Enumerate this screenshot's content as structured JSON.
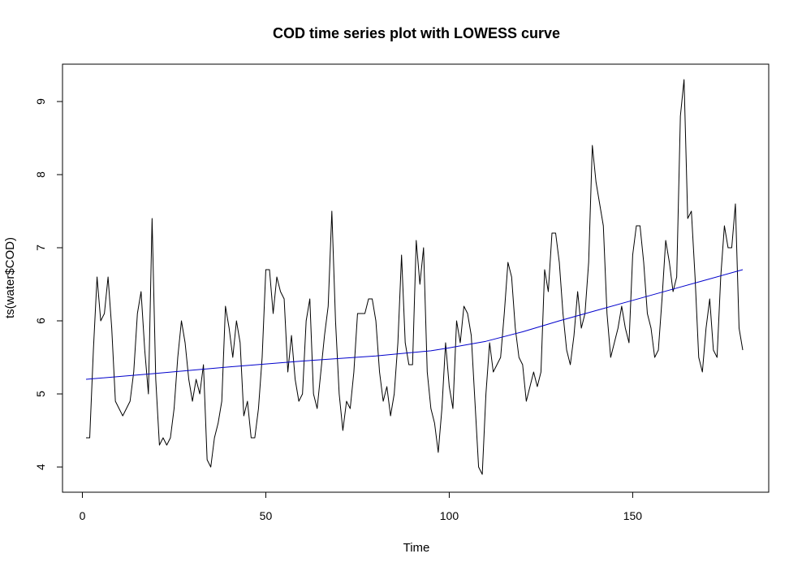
{
  "chart_data": {
    "type": "line",
    "title": "COD time series plot with LOWESS curve",
    "xlabel": "Time",
    "ylabel": "ts(water$COD)",
    "xlim": [
      1,
      180
    ],
    "ylim": [
      3.9,
      9.3
    ],
    "x_ticks": [
      0,
      50,
      100,
      150
    ],
    "y_ticks": [
      4,
      5,
      6,
      7,
      8,
      9
    ],
    "x_tick_labels": [
      "0",
      "50",
      "100",
      "150"
    ],
    "y_tick_labels": [
      "4",
      "5",
      "6",
      "7",
      "8",
      "9"
    ],
    "grid": false,
    "legend": "none",
    "series": [
      {
        "color": "#000000",
        "values": [
          4.4,
          4.4,
          5.6,
          6.6,
          6.0,
          6.1,
          6.6,
          5.9,
          4.9,
          4.8,
          4.7,
          4.8,
          4.9,
          5.3,
          6.1,
          6.4,
          5.6,
          5.0,
          7.4,
          5.2,
          4.3,
          4.4,
          4.3,
          4.4,
          4.8,
          5.5,
          6.0,
          5.7,
          5.2,
          4.9,
          5.2,
          5.0,
          5.4,
          4.1,
          4.0,
          4.4,
          4.6,
          4.9,
          6.2,
          5.9,
          5.5,
          6.0,
          5.7,
          4.7,
          4.9,
          4.4,
          4.4,
          4.8,
          5.5,
          6.7,
          6.7,
          6.1,
          6.6,
          6.4,
          6.3,
          5.3,
          5.8,
          5.2,
          4.9,
          5.0,
          6.0,
          6.3,
          5.0,
          4.8,
          5.3,
          5.8,
          6.2,
          7.5,
          6.0,
          5.0,
          4.5,
          4.9,
          4.8,
          5.3,
          6.1,
          6.1,
          6.1,
          6.3,
          6.3,
          6.0,
          5.3,
          4.9,
          5.1,
          4.7,
          5.0,
          5.7,
          6.9,
          5.7,
          5.4,
          5.4,
          7.1,
          6.5,
          7.0,
          5.3,
          4.8,
          4.6,
          4.2,
          4.8,
          5.7,
          5.1,
          4.8,
          6.0,
          5.7,
          6.2,
          6.1,
          5.8,
          4.9,
          4.0,
          3.9,
          5.0,
          5.7,
          5.3,
          5.4,
          5.5,
          6.1,
          6.8,
          6.6,
          5.9,
          5.5,
          5.4,
          4.9,
          5.1,
          5.3,
          5.1,
          5.3,
          6.7,
          6.4,
          7.2,
          7.2,
          6.8,
          6.1,
          5.6,
          5.4,
          5.8,
          6.4,
          5.9,
          6.1,
          6.8,
          8.4,
          7.9,
          7.6,
          7.3,
          6.1,
          5.5,
          5.7,
          5.9,
          6.2,
          5.9,
          5.7,
          6.9,
          7.3,
          7.3,
          6.8,
          6.1,
          5.9,
          5.5,
          5.6,
          6.3,
          7.1,
          6.8,
          6.4,
          6.6,
          8.8,
          9.3,
          7.4,
          7.5,
          6.6,
          5.5,
          5.3,
          5.9,
          6.3,
          5.6,
          5.5,
          6.6,
          7.3,
          7.0,
          7.0,
          7.6,
          5.9,
          5.6
        ]
      },
      {
        "color": "#0000cc",
        "x": [
          1,
          20,
          40,
          60,
          80,
          95,
          100,
          110,
          120,
          130,
          140,
          150,
          160,
          170,
          180
        ],
        "values": [
          5.2,
          5.28,
          5.37,
          5.45,
          5.52,
          5.59,
          5.63,
          5.72,
          5.85,
          6.0,
          6.14,
          6.28,
          6.42,
          6.56,
          6.7
        ]
      }
    ]
  }
}
